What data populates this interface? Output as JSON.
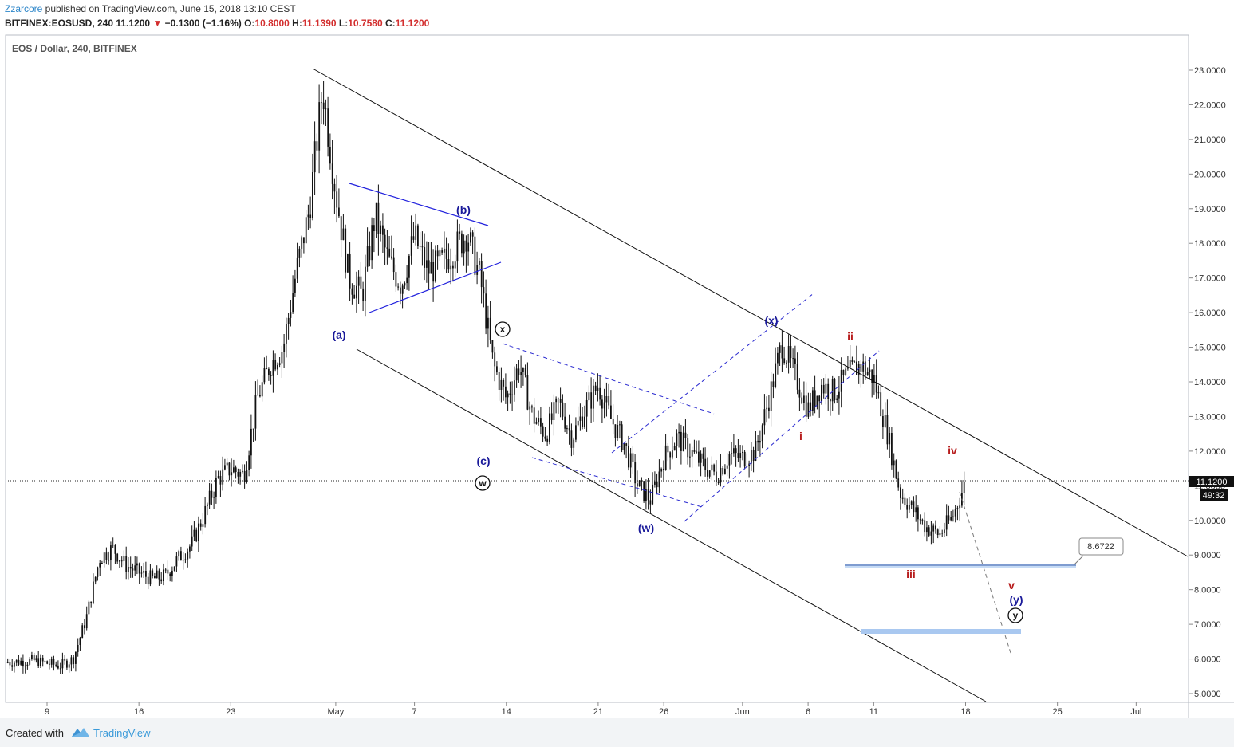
{
  "header": {
    "author": "Zzarcore",
    "published_text": " published on TradingView.com, June 15, 2018 13:10 CEST",
    "symbol_line": "BITFINEX:EOSUSD, 240",
    "last": "11.1200",
    "change": "−0.1300 (−1.16%)",
    "down_arrow": "▼",
    "o_label": "O:",
    "o_value": "10.8000",
    "h_label": "H:",
    "h_value": "11.1390",
    "l_label": "L:",
    "l_value": "10.7580",
    "c_label": "C:",
    "c_value": "11.1200"
  },
  "chart_data": {
    "type": "candlestick",
    "title": "EOS / Dollar, 240, BITFINEX",
    "x_ticks": [
      "9",
      "16",
      "23",
      "May",
      "7",
      "14",
      "21",
      "26",
      "Jun",
      "6",
      "11",
      "18",
      "25",
      "Jul"
    ],
    "y_ticks": [
      "23.0000",
      "22.0000",
      "21.0000",
      "20.0000",
      "19.0000",
      "18.0000",
      "17.0000",
      "16.0000",
      "15.0000",
      "14.0000",
      "13.0000",
      "12.0000",
      "11.0000",
      "10.0000",
      "9.0000",
      "8.0000",
      "7.0000",
      "6.0000",
      "5.0000"
    ],
    "ylim": [
      4.8,
      23.7
    ],
    "xlim": [
      "2018-04-05",
      "2018-07-08"
    ],
    "last_price_label": "11.1200",
    "countdown_label": "49:32",
    "target_price_label": "8.6722",
    "price_path": [
      [
        "2018-04-06",
        5.9
      ],
      [
        "2018-04-08",
        5.95
      ],
      [
        "2018-04-10",
        5.8
      ],
      [
        "2018-04-11",
        6.0
      ],
      [
        "2018-04-12",
        7.2
      ],
      [
        "2018-04-13",
        8.9
      ],
      [
        "2018-04-14",
        9.2
      ],
      [
        "2018-04-15",
        8.7
      ],
      [
        "2018-04-16",
        8.5
      ],
      [
        "2018-04-17",
        8.3
      ],
      [
        "2018-04-18",
        8.4
      ],
      [
        "2018-04-19",
        8.9
      ],
      [
        "2018-04-20",
        9.3
      ],
      [
        "2018-04-21",
        10.2
      ],
      [
        "2018-04-22",
        11.2
      ],
      [
        "2018-04-23",
        11.5
      ],
      [
        "2018-04-24",
        11.3
      ],
      [
        "2018-04-25",
        13.5
      ],
      [
        "2018-04-26",
        14.5
      ],
      [
        "2018-04-27",
        15.0
      ],
      [
        "2018-04-28",
        17.2
      ],
      [
        "2018-04-29",
        19.0
      ],
      [
        "2018-04-30",
        22.5
      ],
      [
        "2018-05-01",
        19.5
      ],
      [
        "2018-05-02",
        17.0
      ],
      [
        "2018-05-03",
        16.5
      ],
      [
        "2018-05-04",
        18.8
      ],
      [
        "2018-05-05",
        17.5
      ],
      [
        "2018-05-06",
        16.8
      ],
      [
        "2018-05-07",
        18.2
      ],
      [
        "2018-05-08",
        17.2
      ],
      [
        "2018-05-09",
        17.4
      ],
      [
        "2018-05-10",
        17.8
      ],
      [
        "2018-05-11",
        18.3
      ],
      [
        "2018-05-12",
        17.0
      ],
      [
        "2018-05-13",
        14.5
      ],
      [
        "2018-05-14",
        13.5
      ],
      [
        "2018-05-15",
        14.5
      ],
      [
        "2018-05-16",
        13.0
      ],
      [
        "2018-05-17",
        12.5
      ],
      [
        "2018-05-18",
        13.4
      ],
      [
        "2018-05-19",
        12.4
      ],
      [
        "2018-05-20",
        13.2
      ],
      [
        "2018-05-21",
        13.9
      ],
      [
        "2018-05-22",
        12.9
      ],
      [
        "2018-05-23",
        12.2
      ],
      [
        "2018-05-24",
        11.0
      ],
      [
        "2018-05-25",
        10.6
      ],
      [
        "2018-05-26",
        11.8
      ],
      [
        "2018-05-27",
        12.4
      ],
      [
        "2018-05-28",
        12.0
      ],
      [
        "2018-05-29",
        11.6
      ],
      [
        "2018-05-30",
        11.3
      ],
      [
        "2018-05-31",
        11.9
      ],
      [
        "2018-06-01",
        11.8
      ],
      [
        "2018-06-02",
        12.0
      ],
      [
        "2018-06-03",
        13.5
      ],
      [
        "2018-06-04",
        15.1
      ],
      [
        "2018-06-05",
        14.2
      ],
      [
        "2018-06-06",
        13.2
      ],
      [
        "2018-06-07",
        13.9
      ],
      [
        "2018-06-08",
        13.7
      ],
      [
        "2018-06-09",
        14.2
      ],
      [
        "2018-06-10",
        14.5
      ],
      [
        "2018-06-11",
        14.1
      ],
      [
        "2018-06-12",
        12.6
      ],
      [
        "2018-06-13",
        10.8
      ],
      [
        "2018-06-14",
        10.3
      ],
      [
        "2018-06-15",
        9.8
      ],
      [
        "2018-06-16",
        9.6
      ],
      [
        "2018-06-17",
        10.1
      ],
      [
        "2018-06-18",
        11.1
      ]
    ],
    "wave_labels": [
      {
        "text": "(a)",
        "color": "#1a1a9a",
        "style": "paren"
      },
      {
        "text": "(b)",
        "color": "#1a1a9a",
        "style": "paren"
      },
      {
        "text": "(c)",
        "color": "#1a1a9a",
        "style": "paren"
      },
      {
        "text": "w",
        "color": "#111111",
        "style": "circle"
      },
      {
        "text": "x",
        "color": "#111111",
        "style": "circle"
      },
      {
        "text": "(w)",
        "color": "#1a1a9a",
        "style": "paren"
      },
      {
        "text": "(x)",
        "color": "#1a1a9a",
        "style": "paren"
      },
      {
        "text": "i",
        "color": "#b71c1c",
        "style": "roman"
      },
      {
        "text": "ii",
        "color": "#b71c1c",
        "style": "roman"
      },
      {
        "text": "iii",
        "color": "#b71c1c",
        "style": "roman"
      },
      {
        "text": "iv",
        "color": "#b71c1c",
        "style": "roman"
      },
      {
        "text": "v",
        "color": "#b71c1c",
        "style": "roman"
      },
      {
        "text": "(y)",
        "color": "#1a1a9a",
        "style": "paren"
      },
      {
        "text": "y",
        "color": "#111111",
        "style": "circle"
      }
    ],
    "colors": {
      "candle": "#111111",
      "blue_line": "#2222dd",
      "dashed": "#2a2ad0",
      "channel": "#111111",
      "support_band": "#bcd3f2",
      "support_line": "#5577bb"
    }
  },
  "footer": {
    "created_with": "Created with",
    "brand": "TradingView"
  }
}
